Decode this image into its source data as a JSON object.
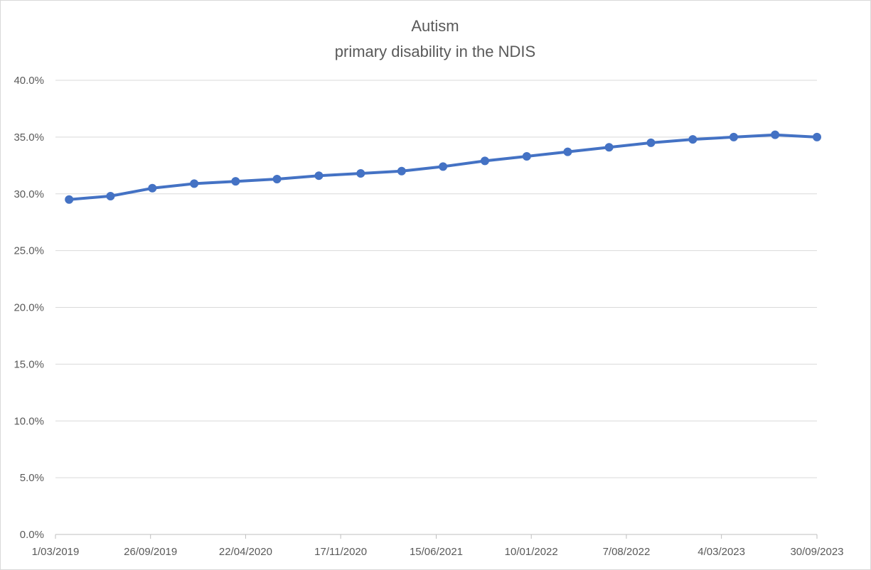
{
  "chart_data": {
    "type": "line",
    "title": [
      "Autism",
      "primary disability in the NDIS"
    ],
    "xlabel": "",
    "ylabel": "",
    "ylim": [
      0,
      40
    ],
    "y_ticks": [
      "0.0%",
      "5.0%",
      "10.0%",
      "15.0%",
      "20.0%",
      "25.0%",
      "30.0%",
      "35.0%",
      "40.0%"
    ],
    "x_range": [
      "2019-03-01",
      "2023-09-30"
    ],
    "x_tick_dates": [
      "2019-03-01",
      "2019-09-26",
      "2020-04-22",
      "2020-11-17",
      "2021-06-15",
      "2022-01-10",
      "2022-08-07",
      "2023-03-04",
      "2023-09-30"
    ],
    "x_tick_labels": [
      "1/03/2019",
      "26/09/2019",
      "22/04/2020",
      "17/11/2020",
      "15/06/2021",
      "10/01/2022",
      "7/08/2022",
      "4/03/2023",
      "30/09/2023"
    ],
    "gridlines": "horizontal",
    "legend": "none",
    "series": [
      {
        "color": "#4472c4",
        "points": [
          {
            "x": "2019-03-31",
            "y": 29.5
          },
          {
            "x": "2019-06-30",
            "y": 29.8
          },
          {
            "x": "2019-09-30",
            "y": 30.5
          },
          {
            "x": "2019-12-31",
            "y": 30.9
          },
          {
            "x": "2020-03-31",
            "y": 31.1
          },
          {
            "x": "2020-06-30",
            "y": 31.3
          },
          {
            "x": "2020-09-30",
            "y": 31.6
          },
          {
            "x": "2020-12-31",
            "y": 31.8
          },
          {
            "x": "2021-03-31",
            "y": 32.0
          },
          {
            "x": "2021-06-30",
            "y": 32.4
          },
          {
            "x": "2021-09-30",
            "y": 32.9
          },
          {
            "x": "2021-12-31",
            "y": 33.3
          },
          {
            "x": "2022-03-31",
            "y": 33.7
          },
          {
            "x": "2022-06-30",
            "y": 34.1
          },
          {
            "x": "2022-09-30",
            "y": 34.5
          },
          {
            "x": "2022-12-31",
            "y": 34.8
          },
          {
            "x": "2023-03-31",
            "y": 35.0
          },
          {
            "x": "2023-06-30",
            "y": 35.2
          },
          {
            "x": "2023-09-30",
            "y": 35.0
          }
        ]
      }
    ]
  }
}
